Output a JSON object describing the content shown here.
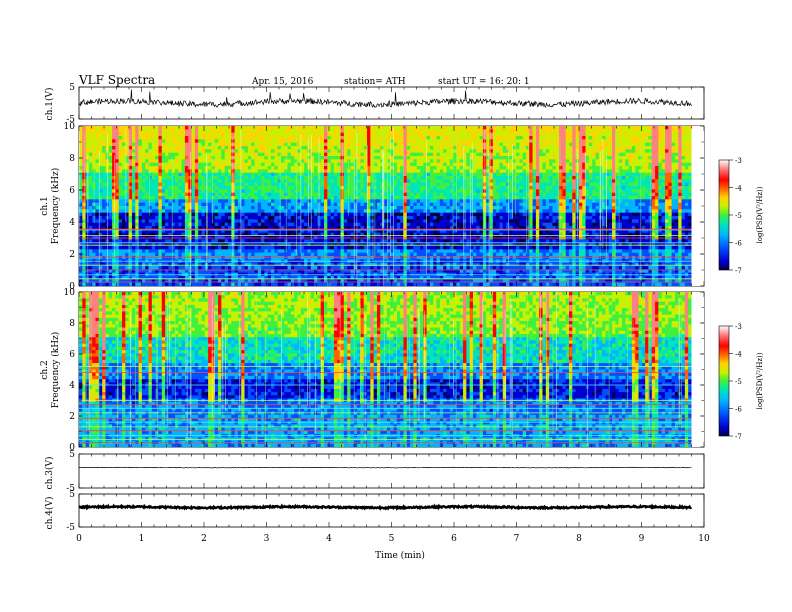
{
  "header": {
    "title": "VLF Spectra",
    "date": "Apr. 15, 2016",
    "station": "station= ATH",
    "start": "start  UT  =   16: 20: 1"
  },
  "chart_data": {
    "type": "heatmap",
    "x_label": "Time (min)",
    "x_range": [
      0,
      10
    ],
    "x_ticks": [
      "0",
      "1",
      "2",
      "3",
      "4",
      "5",
      "6",
      "7",
      "8",
      "9",
      "10"
    ],
    "data_end_min": 9.8,
    "panels": [
      {
        "id": "ch1-waveform",
        "type": "line",
        "ylabel": "ch.1(V)",
        "y_range": [
          -5,
          5
        ],
        "y_ticks": [
          "5",
          "-5"
        ],
        "baseline_v": 0.1
      },
      {
        "id": "ch1-spectrogram",
        "type": "heatmap",
        "ylabel_channel": "ch.1",
        "ylabel": "Frequency (kHz)",
        "y_range": [
          0,
          10
        ],
        "y_ticks": [
          "0",
          "2",
          "4",
          "6",
          "8",
          "10"
        ],
        "horizontal_lines_khz": [
          0.25,
          0.45,
          0.7,
          1.0,
          1.3,
          1.55,
          1.8,
          2.55,
          2.7,
          3.0,
          3.15,
          3.5,
          3.55
        ],
        "colorbar": {
          "label": "log(PSD(V²/Hz))",
          "range": [
            -7,
            -3
          ],
          "ticks": [
            "-3",
            "-4",
            "-5",
            "-6",
            "-7"
          ]
        }
      },
      {
        "id": "ch2-spectrogram",
        "type": "heatmap",
        "ylabel_channel": "ch.2",
        "ylabel": "Frequency (kHz)",
        "y_range": [
          0,
          10
        ],
        "y_ticks": [
          "0",
          "2",
          "4",
          "6",
          "8",
          "10"
        ],
        "horizontal_lines_khz": [
          0.3,
          0.5,
          0.75,
          1.05,
          1.3,
          1.6,
          1.85,
          2.2,
          2.5,
          2.75,
          3.0,
          4.0,
          4.8,
          5.2
        ],
        "colorbar": {
          "label": "log(PSD(V²/Hz))",
          "range": [
            -7,
            -3
          ],
          "ticks": [
            "-3",
            "-4",
            "-5",
            "-6",
            "-7"
          ]
        }
      },
      {
        "id": "ch3-waveform",
        "type": "line",
        "ylabel": "ch.3(V)",
        "y_range": [
          -5,
          5
        ],
        "y_ticks": [
          "5",
          "-5"
        ],
        "baseline_v": 1.0
      },
      {
        "id": "ch4-waveform",
        "type": "line",
        "ylabel": "ch.4(V)",
        "y_range": [
          -5,
          5
        ],
        "y_ticks": [
          "5",
          "-5"
        ],
        "baseline_v": 1.0
      }
    ]
  },
  "colors": {
    "scale": [
      "#000044",
      "#0000cc",
      "#0050ff",
      "#00b4ff",
      "#00e6b4",
      "#40f040",
      "#c8f000",
      "#ffd200",
      "#ff6400",
      "#ff0000",
      "#ff8080",
      "#ffffff"
    ]
  }
}
